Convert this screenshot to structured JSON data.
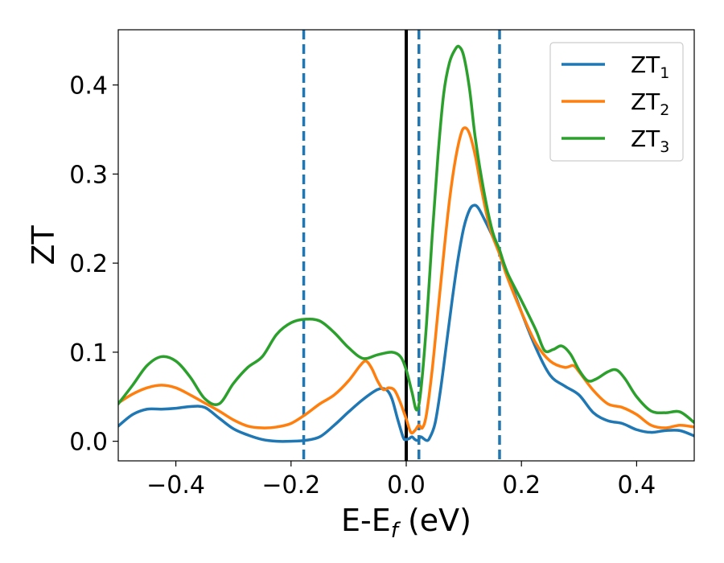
{
  "chart_data": {
    "type": "line",
    "title": "",
    "xlabel": "E-E",
    "xlabel_sub": "f",
    "xlabel_unit": " (eV)",
    "ylabel": "ZT",
    "xlim": [
      -0.5,
      0.5
    ],
    "ylim": [
      -0.022,
      0.462
    ],
    "x_ticks": [
      -0.4,
      -0.2,
      0.0,
      0.2,
      0.4
    ],
    "x_tick_labels": [
      "−0.4",
      "−0.2",
      "0.0",
      "0.2",
      "0.4"
    ],
    "y_ticks": [
      0.0,
      0.1,
      0.2,
      0.3,
      0.4
    ],
    "y_tick_labels": [
      "0.0",
      "0.1",
      "0.2",
      "0.3",
      "0.4"
    ],
    "grid": false,
    "legend_position": "top-right",
    "vertical_lines": [
      {
        "x": 0.0,
        "color": "#000000",
        "style": "solid"
      },
      {
        "x": -0.178,
        "color": "#1f77b4",
        "style": "dashed"
      },
      {
        "x": 0.022,
        "color": "#1f77b4",
        "style": "dashed"
      },
      {
        "x": 0.162,
        "color": "#1f77b4",
        "style": "dashed"
      }
    ],
    "series": [
      {
        "name": "ZT",
        "name_sub": "1",
        "color": "#1f77b4",
        "points": [
          [
            -0.5,
            0.017
          ],
          [
            -0.475,
            0.03
          ],
          [
            -0.45,
            0.036
          ],
          [
            -0.425,
            0.036
          ],
          [
            -0.4,
            0.037
          ],
          [
            -0.375,
            0.039
          ],
          [
            -0.35,
            0.038
          ],
          [
            -0.325,
            0.026
          ],
          [
            -0.3,
            0.014
          ],
          [
            -0.275,
            0.007
          ],
          [
            -0.25,
            0.002
          ],
          [
            -0.225,
            0.0
          ],
          [
            -0.2,
            0.0
          ],
          [
            -0.175,
            0.001
          ],
          [
            -0.15,
            0.005
          ],
          [
            -0.125,
            0.018
          ],
          [
            -0.1,
            0.033
          ],
          [
            -0.075,
            0.047
          ],
          [
            -0.05,
            0.058
          ],
          [
            -0.035,
            0.058
          ],
          [
            -0.025,
            0.048
          ],
          [
            -0.015,
            0.025
          ],
          [
            -0.005,
            0.004
          ],
          [
            0.0,
            0.002
          ],
          [
            0.005,
            0.003
          ],
          [
            0.01,
            0.005
          ],
          [
            0.015,
            0.002
          ],
          [
            0.02,
            0.001
          ],
          [
            0.025,
            0.005
          ],
          [
            0.03,
            0.003
          ],
          [
            0.035,
            0.001
          ],
          [
            0.04,
            0.003
          ],
          [
            0.05,
            0.02
          ],
          [
            0.06,
            0.06
          ],
          [
            0.07,
            0.11
          ],
          [
            0.08,
            0.16
          ],
          [
            0.09,
            0.205
          ],
          [
            0.1,
            0.24
          ],
          [
            0.11,
            0.26
          ],
          [
            0.118,
            0.265
          ],
          [
            0.125,
            0.262
          ],
          [
            0.135,
            0.25
          ],
          [
            0.15,
            0.23
          ],
          [
            0.162,
            0.212
          ],
          [
            0.175,
            0.19
          ],
          [
            0.2,
            0.145
          ],
          [
            0.225,
            0.105
          ],
          [
            0.25,
            0.074
          ],
          [
            0.275,
            0.062
          ],
          [
            0.3,
            0.052
          ],
          [
            0.325,
            0.032
          ],
          [
            0.35,
            0.023
          ],
          [
            0.375,
            0.02
          ],
          [
            0.4,
            0.013
          ],
          [
            0.425,
            0.01
          ],
          [
            0.45,
            0.012
          ],
          [
            0.475,
            0.012
          ],
          [
            0.5,
            0.006
          ]
        ]
      },
      {
        "name": "ZT",
        "name_sub": "2",
        "color": "#ff7f0e",
        "points": [
          [
            -0.5,
            0.043
          ],
          [
            -0.475,
            0.053
          ],
          [
            -0.45,
            0.06
          ],
          [
            -0.425,
            0.063
          ],
          [
            -0.4,
            0.06
          ],
          [
            -0.375,
            0.052
          ],
          [
            -0.35,
            0.043
          ],
          [
            -0.325,
            0.034
          ],
          [
            -0.3,
            0.024
          ],
          [
            -0.275,
            0.017
          ],
          [
            -0.25,
            0.015
          ],
          [
            -0.225,
            0.016
          ],
          [
            -0.2,
            0.02
          ],
          [
            -0.175,
            0.03
          ],
          [
            -0.15,
            0.042
          ],
          [
            -0.125,
            0.052
          ],
          [
            -0.1,
            0.068
          ],
          [
            -0.08,
            0.085
          ],
          [
            -0.07,
            0.09
          ],
          [
            -0.06,
            0.082
          ],
          [
            -0.05,
            0.068
          ],
          [
            -0.04,
            0.058
          ],
          [
            -0.03,
            0.06
          ],
          [
            -0.02,
            0.057
          ],
          [
            -0.01,
            0.043
          ],
          [
            0.0,
            0.025
          ],
          [
            0.008,
            0.01
          ],
          [
            0.015,
            0.012
          ],
          [
            0.022,
            0.018
          ],
          [
            0.028,
            0.015
          ],
          [
            0.035,
            0.03
          ],
          [
            0.045,
            0.08
          ],
          [
            0.055,
            0.145
          ],
          [
            0.065,
            0.21
          ],
          [
            0.075,
            0.27
          ],
          [
            0.085,
            0.315
          ],
          [
            0.095,
            0.345
          ],
          [
            0.102,
            0.352
          ],
          [
            0.11,
            0.345
          ],
          [
            0.12,
            0.32
          ],
          [
            0.13,
            0.285
          ],
          [
            0.145,
            0.24
          ],
          [
            0.162,
            0.21
          ],
          [
            0.175,
            0.185
          ],
          [
            0.2,
            0.145
          ],
          [
            0.225,
            0.11
          ],
          [
            0.25,
            0.09
          ],
          [
            0.275,
            0.083
          ],
          [
            0.29,
            0.085
          ],
          [
            0.3,
            0.078
          ],
          [
            0.325,
            0.057
          ],
          [
            0.35,
            0.042
          ],
          [
            0.375,
            0.038
          ],
          [
            0.4,
            0.03
          ],
          [
            0.425,
            0.018
          ],
          [
            0.45,
            0.015
          ],
          [
            0.475,
            0.018
          ],
          [
            0.5,
            0.016
          ]
        ]
      },
      {
        "name": "ZT",
        "name_sub": "3",
        "color": "#2ca02c",
        "points": [
          [
            -0.5,
            0.042
          ],
          [
            -0.475,
            0.063
          ],
          [
            -0.45,
            0.085
          ],
          [
            -0.425,
            0.095
          ],
          [
            -0.4,
            0.09
          ],
          [
            -0.375,
            0.072
          ],
          [
            -0.35,
            0.048
          ],
          [
            -0.325,
            0.042
          ],
          [
            -0.3,
            0.065
          ],
          [
            -0.275,
            0.083
          ],
          [
            -0.25,
            0.095
          ],
          [
            -0.225,
            0.12
          ],
          [
            -0.2,
            0.133
          ],
          [
            -0.175,
            0.137
          ],
          [
            -0.15,
            0.135
          ],
          [
            -0.125,
            0.122
          ],
          [
            -0.1,
            0.105
          ],
          [
            -0.075,
            0.093
          ],
          [
            -0.05,
            0.097
          ],
          [
            -0.025,
            0.1
          ],
          [
            -0.01,
            0.095
          ],
          [
            0.0,
            0.08
          ],
          [
            0.01,
            0.055
          ],
          [
            0.018,
            0.035
          ],
          [
            0.025,
            0.055
          ],
          [
            0.035,
            0.13
          ],
          [
            0.045,
            0.23
          ],
          [
            0.055,
            0.32
          ],
          [
            0.065,
            0.39
          ],
          [
            0.075,
            0.425
          ],
          [
            0.085,
            0.44
          ],
          [
            0.092,
            0.443
          ],
          [
            0.1,
            0.432
          ],
          [
            0.11,
            0.395
          ],
          [
            0.12,
            0.34
          ],
          [
            0.135,
            0.28
          ],
          [
            0.15,
            0.235
          ],
          [
            0.162,
            0.215
          ],
          [
            0.175,
            0.19
          ],
          [
            0.2,
            0.158
          ],
          [
            0.225,
            0.125
          ],
          [
            0.24,
            0.102
          ],
          [
            0.255,
            0.103
          ],
          [
            0.27,
            0.107
          ],
          [
            0.285,
            0.098
          ],
          [
            0.3,
            0.08
          ],
          [
            0.315,
            0.068
          ],
          [
            0.33,
            0.07
          ],
          [
            0.35,
            0.078
          ],
          [
            0.365,
            0.08
          ],
          [
            0.38,
            0.07
          ],
          [
            0.4,
            0.05
          ],
          [
            0.425,
            0.034
          ],
          [
            0.45,
            0.032
          ],
          [
            0.475,
            0.033
          ],
          [
            0.5,
            0.021
          ]
        ]
      }
    ]
  }
}
